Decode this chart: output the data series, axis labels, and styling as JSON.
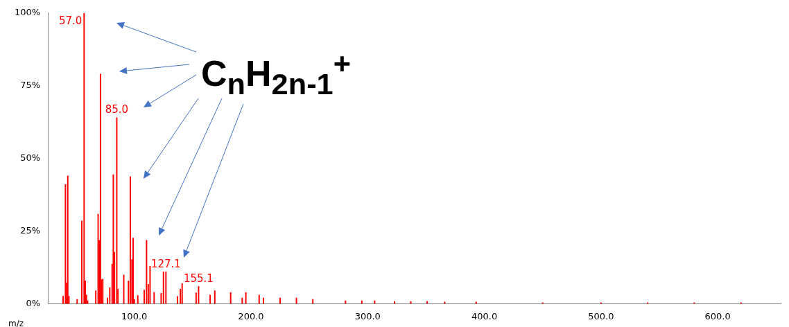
{
  "chart_data": {
    "type": "bar",
    "xlabel": "m/z",
    "x": [
      39,
      41,
      42,
      43,
      44,
      51,
      55,
      57.0,
      58,
      59,
      60,
      67,
      69,
      70,
      71,
      72,
      73,
      77,
      79,
      81,
      82,
      83,
      85.0,
      86,
      91,
      95,
      96.6,
      98,
      99,
      100,
      103,
      108.5,
      110.5,
      112,
      113.5,
      117,
      123,
      125,
      127.1,
      137,
      139.5,
      141,
      153,
      155.1,
      165,
      169,
      182.6,
      192.5,
      195.6,
      207,
      210.7,
      225,
      239,
      253,
      281,
      295,
      306,
      323,
      337,
      351,
      366,
      393,
      450,
      500,
      540,
      580,
      620
    ],
    "series": [
      {
        "color": "#ff0000",
        "values": [
          2.6,
          41,
          7.2,
          44,
          2.6,
          1.5,
          28.5,
          100,
          7.8,
          3,
          1,
          4.5,
          30.8,
          21.8,
          79,
          8.3,
          8.5,
          2,
          5.5,
          13.6,
          44.4,
          17.7,
          64,
          5,
          9.9,
          7.8,
          43.7,
          15.2,
          22.6,
          1.5,
          2.8,
          4.7,
          21.8,
          6.7,
          12.9,
          3.9,
          3.6,
          11,
          11,
          2.5,
          5,
          7,
          3.8,
          6,
          3,
          4.5,
          3.9,
          2,
          3.9,
          3,
          2,
          2,
          2,
          1.5,
          1,
          1,
          1,
          0.8,
          0.8,
          0.8,
          0.6,
          0.6,
          0.4,
          0.4,
          0.4,
          0.4,
          0.4
        ]
      }
    ],
    "xlim": [
      26,
      654
    ],
    "xticks": [
      {
        "value": 100,
        "label": "100.0"
      },
      {
        "value": 200,
        "label": "200.0"
      },
      {
        "value": 300,
        "label": "300.0"
      },
      {
        "value": 400,
        "label": "400.0"
      },
      {
        "value": 500,
        "label": "500.0"
      },
      {
        "value": 600,
        "label": "600.0"
      }
    ],
    "ylim": [
      0,
      100
    ],
    "yticks": [
      {
        "value": 0,
        "label": "0%"
      },
      {
        "value": 25,
        "label": "25%"
      },
      {
        "value": 50,
        "label": "50%"
      },
      {
        "value": 75,
        "label": "75%"
      },
      {
        "value": 100,
        "label": "100%"
      }
    ],
    "grid": false,
    "legend": false,
    "annotations": [
      {
        "text": "57.0",
        "x": 57.0,
        "y": 100
      },
      {
        "text": "85.0",
        "x": 85.0,
        "y": 64
      },
      {
        "text": "127.1",
        "x": 127.1,
        "y": 11
      },
      {
        "text": "155.1",
        "x": 155.1,
        "y": 6
      },
      "C$_{n}$H$_{2n-1}$$^{+}$"
    ]
  }
}
